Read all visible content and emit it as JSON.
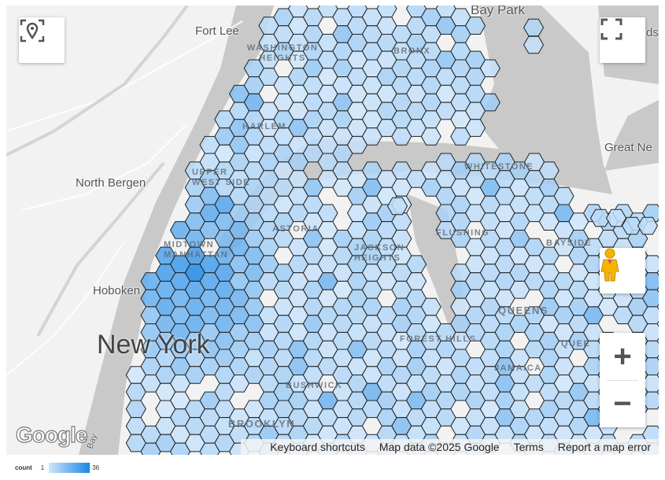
{
  "map": {
    "labels": {
      "fort_lee": "Fort Lee",
      "washington_heights": "WASHINGTON HEIGHTS",
      "north_bergen": "North Bergen",
      "hoboken": "Hoboken",
      "new_york": "New York",
      "harlem": "HARLEM",
      "upper_west_side": "UPPER WEST SIDE",
      "midtown": "MIDTOWN MANHATTAN",
      "bronx": "BRONX",
      "bay_park": "Bay Park",
      "great_neck": "Great Ne",
      "lands_partial": "ds",
      "whitestone": "WHITESTONE",
      "flushing": "FLUSHING",
      "astoria": "ASTORIA",
      "jackson_heights": "JACKSON HEIGHTS",
      "bayside": "BAYSIDE",
      "queens": "QUEENS",
      "queens_village": "QUEE",
      "forest_hills": "FOREST HILLS",
      "jamaica": "JAMAICA",
      "bushwick": "BUSHWICK",
      "brooklyn": "BROOKLYN",
      "bay": "Bay"
    },
    "water_color": "#c9c9c9",
    "land_color": "#f2f2f2"
  },
  "hex_layer": {
    "metric": "count",
    "min": 1,
    "max": 36,
    "color_low": "#cfe6fb",
    "color_high": "#1a87e6",
    "stroke": "#222222"
  },
  "controls": {
    "geolocate_icon": "location-pin-focus-icon",
    "fullscreen_icon": "fullscreen-icon",
    "pegman_icon": "street-view-pegman-icon",
    "zoom_in": "+",
    "zoom_out": "−"
  },
  "attribution": {
    "logo": "Google",
    "keyboard": "Keyboard shortcuts",
    "map_data": "Map data ©2025 Google",
    "terms": "Terms",
    "report": "Report a map error"
  },
  "legend": {
    "title": "count",
    "min_label": "1",
    "max_label": "36"
  }
}
